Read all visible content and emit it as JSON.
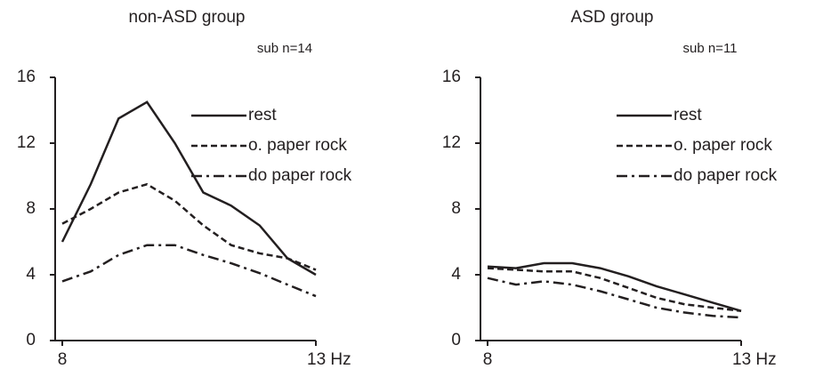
{
  "chart_data": [
    {
      "type": "line",
      "title": "non-ASD group",
      "subtitle": "sub n=14",
      "x": [
        8,
        8.56,
        9.11,
        9.67,
        10.22,
        10.78,
        11.33,
        11.89,
        12.44,
        13
      ],
      "xlim": [
        8,
        13
      ],
      "xticks": [
        8,
        {
          "value": 13,
          "label": "13 Hz"
        }
      ],
      "ylim": [
        0,
        16
      ],
      "yticks": [
        0,
        4,
        8,
        12,
        16
      ],
      "legend": "upper right",
      "series": [
        {
          "name": "rest",
          "color": "#231f20",
          "dash": "solid",
          "values": [
            6,
            9.5,
            13.5,
            14.5,
            12,
            9,
            8.2,
            7,
            5,
            4
          ]
        },
        {
          "name": "o. paper rock",
          "color": "#231f20",
          "dash": "dashed",
          "values": [
            7.1,
            8,
            9,
            9.5,
            8.5,
            7,
            5.8,
            5.3,
            5,
            4.3
          ]
        },
        {
          "name": "do paper rock",
          "color": "#231f20",
          "dash": "dashdot",
          "values": [
            3.6,
            4.2,
            5.2,
            5.8,
            5.8,
            5.2,
            4.7,
            4.1,
            3.4,
            2.7
          ]
        }
      ]
    },
    {
      "type": "line",
      "title": "ASD group",
      "subtitle": "sub n=11",
      "x": [
        8,
        8.56,
        9.11,
        9.67,
        10.22,
        10.78,
        11.33,
        11.89,
        12.44,
        13
      ],
      "xlim": [
        8,
        13
      ],
      "xticks": [
        8,
        {
          "value": 13,
          "label": "13 Hz"
        }
      ],
      "ylim": [
        0,
        16
      ],
      "yticks": [
        0,
        4,
        8,
        12,
        16
      ],
      "legend": "upper right",
      "series": [
        {
          "name": "rest",
          "color": "#231f20",
          "dash": "solid",
          "values": [
            4.5,
            4.4,
            4.7,
            4.7,
            4.4,
            3.9,
            3.3,
            2.8,
            2.3,
            1.8
          ]
        },
        {
          "name": "o. paper rock",
          "color": "#231f20",
          "dash": "dashed",
          "values": [
            4.4,
            4.3,
            4.2,
            4.2,
            3.8,
            3.2,
            2.6,
            2.2,
            2.0,
            1.8
          ]
        },
        {
          "name": "do paper rock",
          "color": "#231f20",
          "dash": "dashdot",
          "values": [
            3.8,
            3.4,
            3.6,
            3.4,
            3.0,
            2.5,
            2.0,
            1.7,
            1.5,
            1.4
          ]
        }
      ]
    }
  ]
}
